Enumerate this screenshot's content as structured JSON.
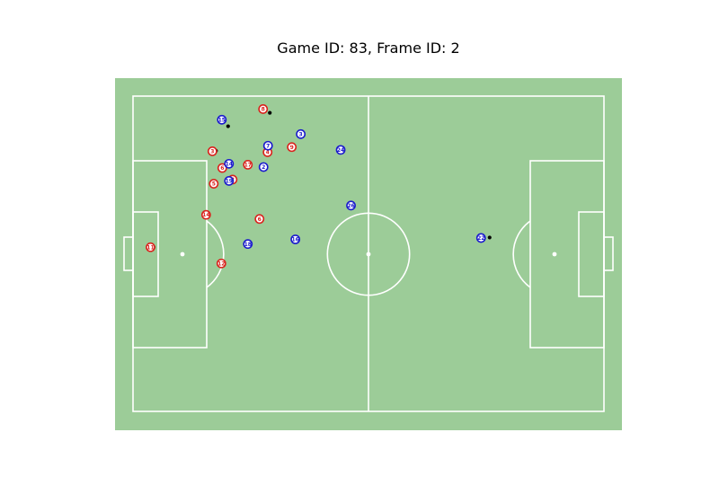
{
  "title": "Game ID: 83, Frame ID: 2",
  "colors": {
    "pitch": "#9ccc98",
    "lines": "#ffffff",
    "home": "#d9221c",
    "away": "#1a1acc",
    "ball": "#000000"
  },
  "pitch": {
    "length": 105,
    "width": 68
  },
  "players": [
    {
      "team": "home",
      "number": "8",
      "x": 29.0,
      "y": 2.8
    },
    {
      "team": "home",
      "number": "3",
      "x": 17.7,
      "y": 11.9
    },
    {
      "team": "home",
      "number": "4",
      "x": 30.0,
      "y": 12.1
    },
    {
      "team": "home",
      "number": "9",
      "x": 35.4,
      "y": 11.0
    },
    {
      "team": "home",
      "number": "6",
      "x": 19.9,
      "y": 15.5
    },
    {
      "team": "home",
      "number": "17",
      "x": 25.6,
      "y": 14.8
    },
    {
      "team": "home",
      "number": "2",
      "x": 22.2,
      "y": 18.0
    },
    {
      "team": "home",
      "number": "5",
      "x": 18.0,
      "y": 18.9
    },
    {
      "team": "home",
      "number": "14",
      "x": 16.3,
      "y": 25.6
    },
    {
      "team": "home",
      "number": "6",
      "x": 28.2,
      "y": 26.5
    },
    {
      "team": "home",
      "number": "11",
      "x": 3.9,
      "y": 32.6
    },
    {
      "team": "home",
      "number": "12",
      "x": 19.7,
      "y": 36.1
    },
    {
      "team": "away",
      "number": "15",
      "x": 19.8,
      "y": 5.1
    },
    {
      "team": "away",
      "number": "3",
      "x": 37.4,
      "y": 8.2
    },
    {
      "team": "away",
      "number": "7",
      "x": 30.1,
      "y": 10.7
    },
    {
      "team": "away",
      "number": "24",
      "x": 46.3,
      "y": 11.6
    },
    {
      "team": "away",
      "number": "14",
      "x": 21.4,
      "y": 14.6
    },
    {
      "team": "away",
      "number": "2",
      "x": 29.1,
      "y": 15.3
    },
    {
      "team": "away",
      "number": "19",
      "x": 21.4,
      "y": 18.3
    },
    {
      "team": "away",
      "number": "26",
      "x": 48.6,
      "y": 23.6
    },
    {
      "team": "away",
      "number": "16",
      "x": 36.2,
      "y": 30.9
    },
    {
      "team": "away",
      "number": "18",
      "x": 25.6,
      "y": 31.9
    },
    {
      "team": "away",
      "number": "22",
      "x": 77.6,
      "y": 30.6
    }
  ],
  "dots": [
    {
      "x": 21.2,
      "y": 6.5
    },
    {
      "x": 30.5,
      "y": 3.6
    },
    {
      "x": 18.5,
      "y": 11.8
    },
    {
      "x": 25.0,
      "y": 14.7
    },
    {
      "x": 29.7,
      "y": 11.5
    },
    {
      "x": 4.6,
      "y": 32.6
    },
    {
      "x": 79.5,
      "y": 30.5
    }
  ]
}
